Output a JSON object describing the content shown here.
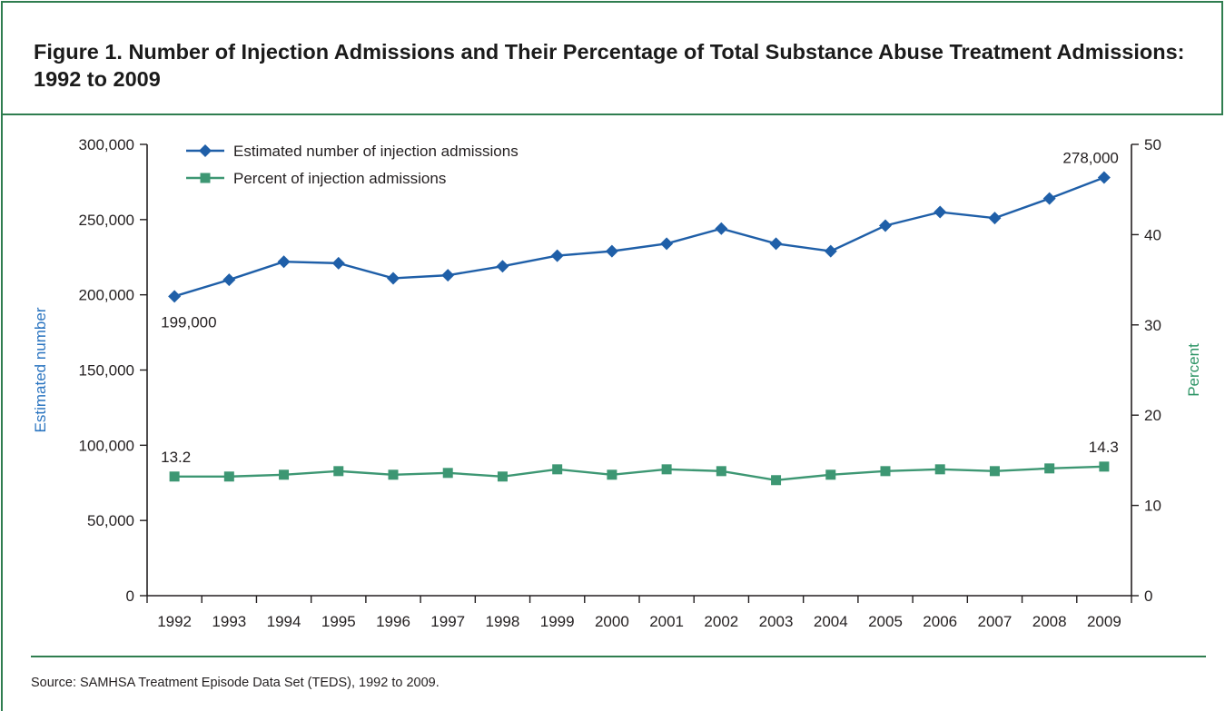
{
  "figure": {
    "title": "Figure 1. Number of Injection Admissions and Their Percentage of Total Substance Abuse Treatment Admissions: 1992 to 2009",
    "source": "Source: SAMHSA Treatment Episode Data Set (TEDS), 1992 to 2009."
  },
  "colors": {
    "frame": "#2f7d4f",
    "number_series": "#1f5fa8",
    "percent_series": "#3d9773",
    "ylabel_left": "#2a74c0",
    "ylabel_right": "#2e9566"
  },
  "chart_data": {
    "type": "line",
    "categories": [
      "1992",
      "1993",
      "1994",
      "1995",
      "1996",
      "1997",
      "1998",
      "1999",
      "2000",
      "2001",
      "2002",
      "2003",
      "2004",
      "2005",
      "2006",
      "2007",
      "2008",
      "2009"
    ],
    "ylabel": "Estimated number",
    "y2label": "Percent",
    "ylim": [
      0,
      300000
    ],
    "y2lim": [
      0,
      50
    ],
    "y_ticks": [
      "0",
      "50,000",
      "100,000",
      "150,000",
      "200,000",
      "250,000",
      "300,000"
    ],
    "y2_ticks": [
      "0",
      "10",
      "20",
      "30",
      "40",
      "50"
    ],
    "legend_position": "top-left",
    "grid": false,
    "series": [
      {
        "name": "Estimated number of injection admissions",
        "axis": "left",
        "marker": "diamond",
        "values": [
          199000,
          210000,
          222000,
          221000,
          211000,
          213000,
          219000,
          226000,
          229000,
          234000,
          244000,
          234000,
          229000,
          246000,
          255000,
          251000,
          264000,
          278000
        ]
      },
      {
        "name": "Percent of injection admissions",
        "axis": "right",
        "marker": "square",
        "values": [
          13.2,
          13.2,
          13.4,
          13.8,
          13.4,
          13.6,
          13.2,
          14.0,
          13.4,
          14.0,
          13.8,
          12.8,
          13.4,
          13.8,
          14.0,
          13.8,
          14.1,
          14.3
        ]
      }
    ],
    "annotations": [
      {
        "series": 0,
        "index": 0,
        "text": "199,000",
        "position": "below"
      },
      {
        "series": 0,
        "index": 17,
        "text": "278,000",
        "position": "above"
      },
      {
        "series": 1,
        "index": 0,
        "text": "13.2",
        "position": "above"
      },
      {
        "series": 1,
        "index": 17,
        "text": "14.3",
        "position": "above"
      }
    ]
  }
}
